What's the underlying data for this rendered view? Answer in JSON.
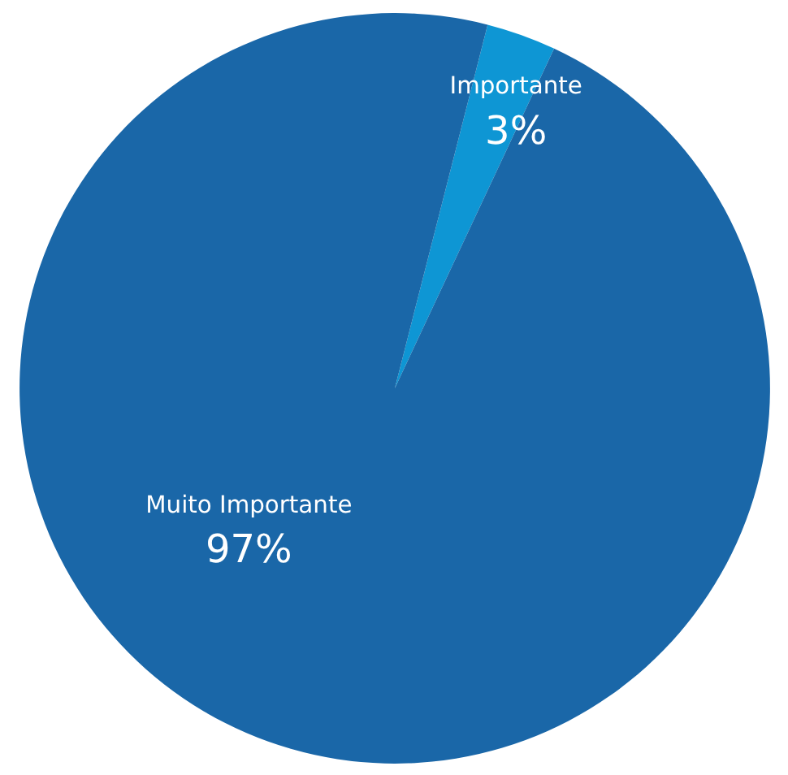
{
  "chart_data": {
    "type": "pie",
    "categories": [
      "Muito Importante",
      "Importante"
    ],
    "values": [
      97,
      3
    ],
    "colors": [
      "#1a67a8",
      "#0e96d4"
    ],
    "value_labels": [
      "97%",
      "3%"
    ]
  }
}
